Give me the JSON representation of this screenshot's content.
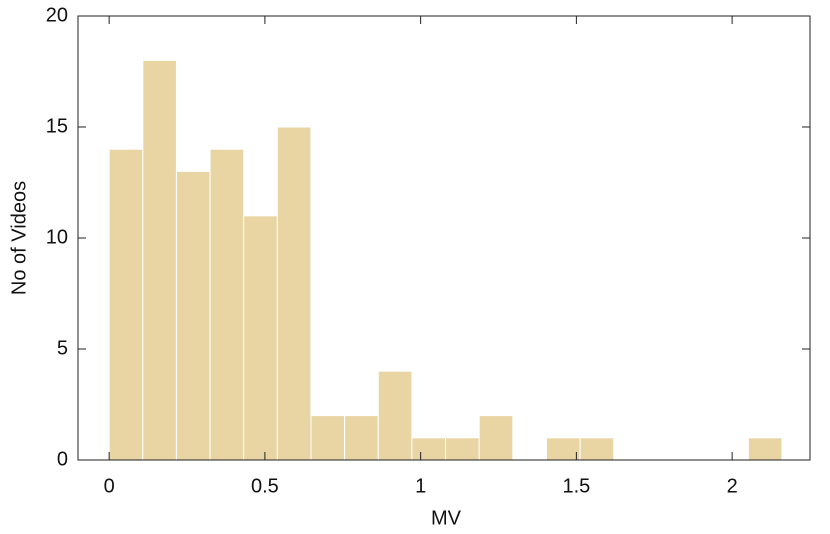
{
  "chart_data": {
    "type": "histogram",
    "x_label": "MV",
    "y_label": "No of Videos",
    "bins": [
      0,
      0.108,
      0.216,
      0.324,
      0.432,
      0.54,
      0.648,
      0.756,
      0.864,
      0.972,
      1.08,
      1.188,
      1.296,
      1.404,
      1.512,
      1.62,
      1.728,
      1.836,
      1.944,
      2.052,
      2.16
    ],
    "values": [
      14,
      18,
      13,
      14,
      11,
      15,
      2,
      2,
      4,
      1,
      1,
      2,
      0,
      1,
      1,
      0,
      0,
      0,
      0,
      1
    ],
    "color": "#e8d5a3",
    "xlim": [
      -0.1,
      2.25
    ],
    "xticks": [
      0,
      0.5,
      1,
      1.5,
      2
    ],
    "ylim": [
      0,
      20
    ],
    "yticks": [
      0,
      5,
      10,
      15,
      20
    ]
  }
}
